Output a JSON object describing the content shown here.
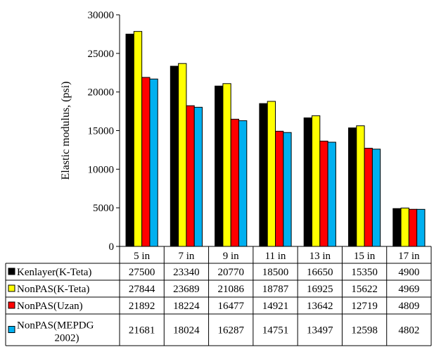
{
  "chart_data": {
    "type": "bar",
    "categories": [
      "5 in",
      "7 in",
      "9 in",
      "11 in",
      "13 in",
      "15 in",
      "17 in"
    ],
    "series": [
      {
        "name": "Kenlayer(K-Teta)",
        "color": "#000000",
        "values": [
          27500,
          23340,
          20770,
          18500,
          16650,
          15350,
          4900
        ]
      },
      {
        "name": "NonPAS(K-Teta)",
        "color": "#ffff00",
        "values": [
          27844,
          23689,
          21086,
          18787,
          16925,
          15622,
          4969
        ]
      },
      {
        "name": "NonPAS(Uzan)",
        "color": "#ff0000",
        "values": [
          21892,
          18224,
          16477,
          14921,
          13642,
          12719,
          4809
        ]
      },
      {
        "name": "NonPAS(MEPDG 2002)",
        "legend_lines": [
          "NonPAS(MEPDG",
          "2002)"
        ],
        "color": "#00b0f0",
        "values": [
          21681,
          18024,
          16287,
          14751,
          13497,
          12598,
          4802
        ]
      }
    ],
    "ylabel": "Elastic modulus, (psi)",
    "ylim": [
      0,
      30000
    ],
    "yticks": [
      "0",
      "5000",
      "10000",
      "15000",
      "20000",
      "25000",
      "30000"
    ],
    "grid": false,
    "legend_placement": "data-table"
  }
}
